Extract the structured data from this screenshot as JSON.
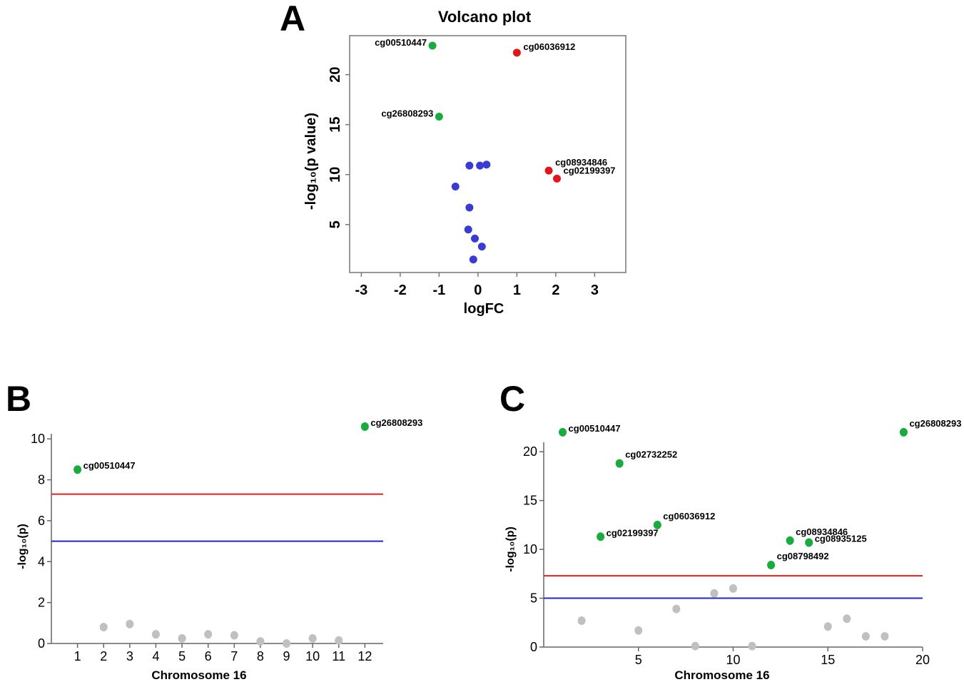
{
  "colors": {
    "green": "#1aab3f",
    "red": "#e0161c",
    "blue": "#3a3ad4",
    "gray": "#c0c0c0",
    "threshold_red": "#e02020",
    "threshold_blue": "#2525d0",
    "axis": "#666666"
  },
  "chart_data": [
    {
      "panel": "A",
      "type": "scatter",
      "title": "Volcano plot",
      "xlabel": "logFC",
      "ylabel": "-log₁₀(p value)",
      "xlim": [
        -3.3,
        3.8
      ],
      "ylim": [
        0.2,
        23.9
      ],
      "xticks": [
        -3,
        -2,
        -1,
        0,
        1,
        2,
        3
      ],
      "xtick_labels": [
        "-3",
        "-2",
        "-1",
        "0",
        "1",
        "2",
        "3"
      ],
      "yticks": [
        5,
        10,
        15,
        20
      ],
      "ytick_labels": [
        "5",
        "10",
        "15",
        "20"
      ],
      "points": [
        {
          "x": -1.17,
          "y": 22.9,
          "color": "green",
          "label": "cg00510447",
          "label_pos": "left"
        },
        {
          "x": 1.0,
          "y": 22.2,
          "color": "red",
          "label": "cg06036912",
          "label_pos": "right"
        },
        {
          "x": -1.0,
          "y": 15.8,
          "color": "green",
          "label": "cg26808293",
          "label_pos": "left"
        },
        {
          "x": 1.82,
          "y": 10.4,
          "color": "red",
          "label": "cg08934846",
          "label_pos": "right-up"
        },
        {
          "x": 2.03,
          "y": 9.6,
          "color": "red",
          "label": "cg02199397",
          "label_pos": "right-up"
        },
        {
          "x": -0.22,
          "y": 10.9,
          "color": "blue"
        },
        {
          "x": 0.05,
          "y": 10.9,
          "color": "blue"
        },
        {
          "x": 0.22,
          "y": 11.0,
          "color": "blue"
        },
        {
          "x": -0.58,
          "y": 8.8,
          "color": "blue"
        },
        {
          "x": -0.22,
          "y": 6.7,
          "color": "blue"
        },
        {
          "x": -0.25,
          "y": 4.5,
          "color": "blue"
        },
        {
          "x": -0.08,
          "y": 3.6,
          "color": "blue"
        },
        {
          "x": 0.1,
          "y": 2.8,
          "color": "blue"
        },
        {
          "x": -0.12,
          "y": 1.5,
          "color": "blue"
        }
      ]
    },
    {
      "panel": "B",
      "type": "scatter",
      "title": "",
      "xlabel": "Chromosome 16",
      "ylabel": "-log₁₀(p)",
      "xlim": [
        0,
        12.7
      ],
      "ylim": [
        0,
        10.6
      ],
      "xticks": [
        1,
        2,
        3,
        4,
        5,
        6,
        7,
        8,
        9,
        10,
        11,
        12
      ],
      "xtick_labels": [
        "1",
        "2",
        "3",
        "4",
        "5",
        "6",
        "7",
        "8",
        "9",
        "10",
        "11",
        "12"
      ],
      "yticks": [
        0,
        2,
        4,
        6,
        8,
        10
      ],
      "ytick_labels": [
        "0",
        "2",
        "4",
        "6",
        "8",
        "10"
      ],
      "thresholds": [
        {
          "y": 7.3,
          "color": "threshold_red"
        },
        {
          "y": 5.0,
          "color": "threshold_blue"
        }
      ],
      "points": [
        {
          "x": 1,
          "y": 8.5,
          "color": "green",
          "label": "cg00510447"
        },
        {
          "x": 12,
          "y": 10.6,
          "color": "green",
          "label": "cg26808293"
        },
        {
          "x": 2,
          "y": 0.8,
          "color": "gray"
        },
        {
          "x": 3,
          "y": 0.95,
          "color": "gray"
        },
        {
          "x": 4,
          "y": 0.45,
          "color": "gray"
        },
        {
          "x": 5,
          "y": 0.25,
          "color": "gray"
        },
        {
          "x": 6,
          "y": 0.45,
          "color": "gray"
        },
        {
          "x": 7,
          "y": 0.4,
          "color": "gray"
        },
        {
          "x": 8,
          "y": 0.1,
          "color": "gray"
        },
        {
          "x": 9,
          "y": 0.0,
          "color": "gray"
        },
        {
          "x": 10,
          "y": 0.25,
          "color": "gray"
        },
        {
          "x": 11,
          "y": 0.15,
          "color": "gray"
        }
      ]
    },
    {
      "panel": "C",
      "type": "scatter",
      "title": "",
      "xlabel": "Chromosome 16",
      "ylabel": "-log₁₀(p)",
      "xlim": [
        0,
        20
      ],
      "ylim": [
        0,
        20.6
      ],
      "xticks": [
        5,
        10,
        15,
        20
      ],
      "xtick_labels": [
        "5",
        "10",
        "15",
        "20"
      ],
      "yticks": [
        0,
        5,
        10,
        15,
        20
      ],
      "ytick_labels": [
        "0",
        "5",
        "10",
        "15",
        "20"
      ],
      "thresholds": [
        {
          "y": 7.3,
          "color": "threshold_red"
        },
        {
          "y": 5.0,
          "color": "threshold_blue"
        }
      ],
      "points": [
        {
          "x": 1,
          "y": 22.0,
          "color": "green",
          "label": "cg00510447",
          "label_pos": "right"
        },
        {
          "x": 19,
          "y": 22.0,
          "color": "green",
          "label": "cg26808293",
          "label_pos": "right-up"
        },
        {
          "x": 4,
          "y": 18.8,
          "color": "green",
          "label": "cg02732252",
          "label_pos": "right-up"
        },
        {
          "x": 6,
          "y": 12.5,
          "color": "green",
          "label": "cg06036912",
          "label_pos": "right-up"
        },
        {
          "x": 3,
          "y": 11.3,
          "color": "green",
          "label": "cg02199397",
          "label_pos": "right"
        },
        {
          "x": 13,
          "y": 10.9,
          "color": "green",
          "label": "cg08934846",
          "label_pos": "right-up"
        },
        {
          "x": 14,
          "y": 10.7,
          "color": "green",
          "label": "cg08935125",
          "label_pos": "right"
        },
        {
          "x": 12,
          "y": 8.4,
          "color": "green",
          "label": "cg08798492",
          "label_pos": "right-up"
        },
        {
          "x": 2,
          "y": 2.7,
          "color": "gray"
        },
        {
          "x": 5,
          "y": 1.7,
          "color": "gray"
        },
        {
          "x": 7,
          "y": 3.9,
          "color": "gray"
        },
        {
          "x": 8,
          "y": 0.1,
          "color": "gray"
        },
        {
          "x": 9,
          "y": 5.5,
          "color": "gray"
        },
        {
          "x": 10,
          "y": 6.0,
          "color": "gray"
        },
        {
          "x": 11,
          "y": 0.1,
          "color": "gray"
        },
        {
          "x": 15,
          "y": 2.1,
          "color": "gray"
        },
        {
          "x": 16,
          "y": 2.9,
          "color": "gray"
        },
        {
          "x": 17,
          "y": 1.1,
          "color": "gray"
        },
        {
          "x": 18,
          "y": 1.1,
          "color": "gray"
        }
      ]
    }
  ]
}
